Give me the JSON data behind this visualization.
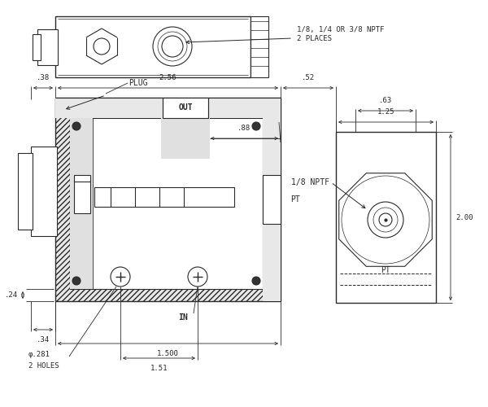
{
  "bg_color": "#ffffff",
  "line_color": "#2a2a2a",
  "dim_color": "#2a2a2a",
  "font_size_dim": 6.5,
  "font_size_label": 7.0,
  "font_size_note": 6.5,
  "dimensions": {
    "dim_038": ".38",
    "dim_256": "2.56",
    "dim_052": ".52",
    "dim_088": ".88",
    "dim_024": ".24",
    "dim_034": ".34",
    "dim_1500": "1.500",
    "dim_151": "1.51",
    "dim_phi281": "φ.281",
    "dim_2holes": "2 HOLES",
    "dim_125": "1.25",
    "dim_063": ".63",
    "dim_200": "2.00",
    "label_plug": "PLUG",
    "label_out": "OUT",
    "label_in": "IN",
    "label_pt": "PT",
    "label_pt2": "PT",
    "label_18nptf": "1/8 NPTF",
    "label_note": "1/8, 1/4 OR 3/8 NPTF\n2 PLACES"
  }
}
